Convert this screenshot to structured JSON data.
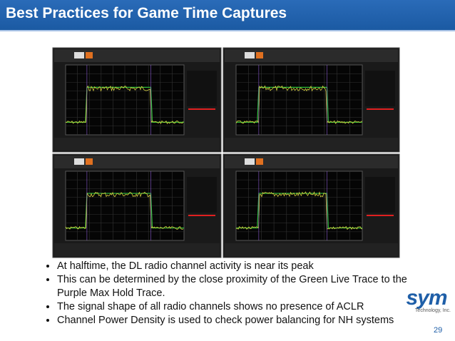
{
  "header": {
    "title": "Best Practices for Game Time Captures"
  },
  "bullets": [
    "At halftime, the DL radio channel activity is near its peak",
    "This can be determined by the close proximity of the Green Live Trace to the Purple Max Hold Trace.",
    "The signal shape of all radio channels shows no presence of ACLR",
    "Channel Power Density is used to check power balancing for NH systems"
  ],
  "logo": {
    "name": "sym",
    "subtitle": "Technology, Inc."
  },
  "page_number": "29"
}
